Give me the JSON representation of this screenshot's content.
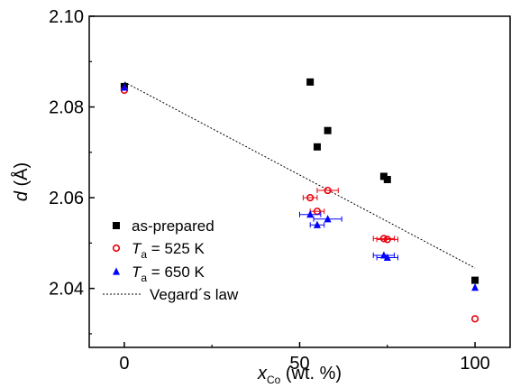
{
  "chart_data": {
    "type": "scatter",
    "xlabel": {
      "main": "x",
      "sub": "Co",
      "unit": " (wt. %)"
    },
    "ylabel": {
      "main": "d",
      "unit": " (Å)"
    },
    "xlim": [
      -10,
      110
    ],
    "ylim": [
      2.027,
      2.1
    ],
    "x_ticks": [
      0,
      50,
      100
    ],
    "x_tick_labels": [
      "0",
      "50",
      "100"
    ],
    "y_ticks": [
      2.04,
      2.06,
      2.08,
      2.1
    ],
    "y_tick_labels": [
      "2.04",
      "2.06",
      "2.08",
      "2.10"
    ],
    "grid": false,
    "legend_position": "bottom-left",
    "series": [
      {
        "name": "as-prepared",
        "legend": {
          "main": "as-prepared"
        },
        "marker": "square",
        "color": "#000000",
        "points": [
          {
            "x": 0,
            "y": 2.0845
          },
          {
            "x": 53,
            "y": 2.0855
          },
          {
            "x": 55,
            "y": 2.0712
          },
          {
            "x": 58,
            "y": 2.0748
          },
          {
            "x": 74,
            "y": 2.0647
          },
          {
            "x": 75,
            "y": 2.064
          },
          {
            "x": 100,
            "y": 2.0418
          }
        ]
      },
      {
        "name": "Ta = 525 K",
        "legend": {
          "main": "T",
          "sub": "a",
          "rest": " = 525 K"
        },
        "marker": "circle-open",
        "color": "#e8000b",
        "points": [
          {
            "x": 0,
            "y": 2.0837,
            "xerr": 0
          },
          {
            "x": 53,
            "y": 2.06,
            "xerr": 2
          },
          {
            "x": 55,
            "y": 2.057,
            "xerr": 2
          },
          {
            "x": 58,
            "y": 2.0616,
            "xerr": 3
          },
          {
            "x": 74,
            "y": 2.051,
            "xerr": 3
          },
          {
            "x": 75,
            "y": 2.0508,
            "xerr": 3
          },
          {
            "x": 100,
            "y": 2.0333,
            "xerr": 0
          }
        ]
      },
      {
        "name": "Ta = 650 K",
        "legend": {
          "main": "T",
          "sub": "a",
          "rest": " = 650 K"
        },
        "marker": "triangle",
        "color": "#0000ff",
        "points": [
          {
            "x": 0,
            "y": 2.0843,
            "xerr": 0
          },
          {
            "x": 53,
            "y": 2.0563,
            "xerr": 3
          },
          {
            "x": 55,
            "y": 2.054,
            "xerr": 2
          },
          {
            "x": 58,
            "y": 2.0553,
            "xerr": 4
          },
          {
            "x": 74,
            "y": 2.0473,
            "xerr": 3
          },
          {
            "x": 75,
            "y": 2.0468,
            "xerr": 3
          },
          {
            "x": 100,
            "y": 2.0402,
            "xerr": 0
          }
        ]
      },
      {
        "name": "Vegard´s law",
        "legend": {
          "main": "Vegard´s law"
        },
        "marker": "dotted-line",
        "color": "#000000",
        "points": [
          {
            "x": 0,
            "y": 2.0855
          },
          {
            "x": 100,
            "y": 2.0445
          }
        ]
      }
    ]
  }
}
